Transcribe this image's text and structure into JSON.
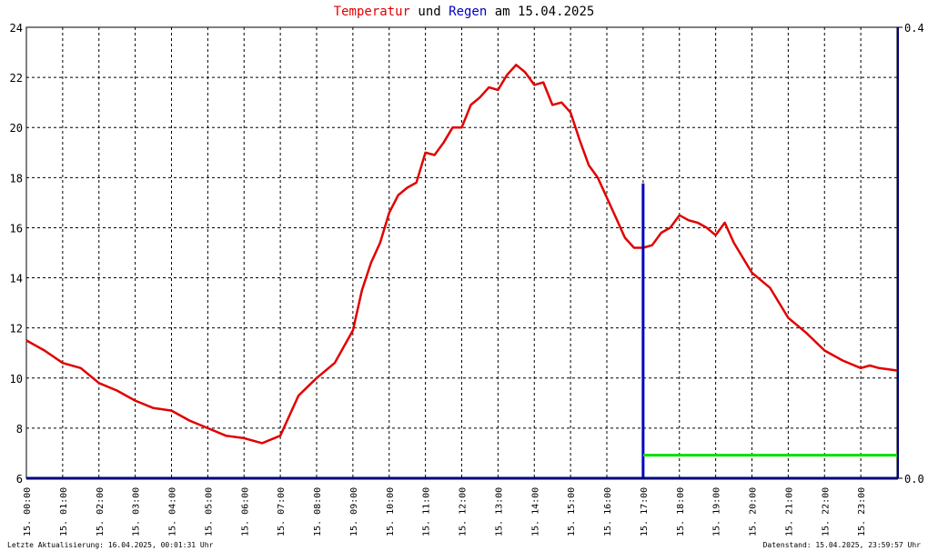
{
  "title": {
    "part1": "Temperatur",
    "part2": "und",
    "part3": "Regen",
    "part4": "am 15.04.2025"
  },
  "footer": {
    "left": "Letzte Aktualisierung: 16.04.2025, 00:01:31 Uhr",
    "right": "Datenstand: 15.04.2025, 23:59:57 Uhr"
  },
  "colors": {
    "temperature": "#e00000",
    "rain_bar": "#0000c0",
    "rain_line": "#00e000",
    "grid": "#000000",
    "axis": "#000080"
  },
  "chart_data": {
    "type": "line",
    "title": "Temperatur und Regen am 15.04.2025",
    "xlabel": "",
    "ylabel": "",
    "grid": true,
    "x_ticks": [
      "15. 00:00",
      "15. 01:00",
      "15. 02:00",
      "15. 03:00",
      "15. 04:00",
      "15. 05:00",
      "15. 06:00",
      "15. 07:00",
      "15. 08:00",
      "15. 09:00",
      "15. 10:00",
      "15. 11:00",
      "15. 12:00",
      "15. 13:00",
      "15. 14:00",
      "15. 15:00",
      "15. 16:00",
      "15. 17:00",
      "15. 18:00",
      "15. 19:00",
      "15. 20:00",
      "15. 21:00",
      "15. 22:00",
      "15. 23:00"
    ],
    "xlim": [
      0,
      24
    ],
    "y_left": {
      "ylim": [
        6,
        24
      ],
      "ticks": [
        "6",
        "8",
        "10",
        "12",
        "14",
        "16",
        "18",
        "20",
        "22",
        "24"
      ]
    },
    "y_right": {
      "ylim": [
        0,
        0.4
      ],
      "ticks": [
        "0.0",
        "0.4"
      ]
    },
    "series": [
      {
        "axis": "left",
        "color": "#e00000",
        "x": [
          0,
          0.5,
          1,
          1.5,
          2,
          2.5,
          3,
          3.5,
          4,
          4.5,
          5,
          5.5,
          6,
          6.5,
          7,
          7.25,
          7.5,
          8,
          8.5,
          9,
          9.25,
          9.5,
          9.75,
          10,
          10.25,
          10.5,
          10.75,
          11,
          11.25,
          11.5,
          11.75,
          12,
          12.25,
          12.5,
          12.75,
          13,
          13.25,
          13.5,
          13.75,
          14,
          14.25,
          14.5,
          14.75,
          15,
          15.25,
          15.5,
          15.75,
          16,
          16.25,
          16.5,
          16.75,
          17,
          17.25,
          17.5,
          17.75,
          18,
          18.25,
          18.5,
          18.75,
          19,
          19.25,
          19.5,
          19.75,
          20,
          20.25,
          20.5,
          20.75,
          21,
          21.5,
          22,
          22.5,
          23,
          23.25,
          23.5,
          23.75,
          24
        ],
        "values": [
          11.5,
          11.1,
          10.6,
          10.4,
          9.8,
          9.5,
          9.1,
          8.8,
          8.7,
          8.3,
          8.0,
          7.7,
          7.6,
          7.4,
          7.7,
          8.5,
          9.3,
          10.0,
          10.6,
          11.9,
          13.5,
          14.6,
          15.4,
          16.6,
          17.3,
          17.6,
          17.8,
          19.0,
          18.9,
          19.4,
          20.0,
          20.0,
          20.9,
          21.2,
          21.6,
          21.5,
          22.1,
          22.5,
          22.2,
          21.7,
          21.8,
          20.9,
          21.0,
          20.6,
          19.5,
          18.5,
          18.0,
          17.2,
          16.4,
          15.6,
          15.2,
          15.2,
          15.3,
          15.8,
          16.0,
          16.5,
          16.3,
          16.2,
          16.0,
          15.7,
          16.2,
          15.4,
          14.8,
          14.2,
          13.9,
          13.6,
          13.0,
          12.4,
          11.8,
          11.1,
          10.7,
          10.4,
          10.5,
          10.4,
          10.35,
          10.3
        ]
      },
      {
        "axis": "right",
        "type": "bar",
        "color": "#0000c0",
        "x": [
          17
        ],
        "values": [
          0.2615
        ]
      },
      {
        "axis": "right",
        "color": "#00e000",
        "x": [
          17,
          24
        ],
        "values": [
          0.0205,
          0.0205
        ]
      }
    ]
  }
}
